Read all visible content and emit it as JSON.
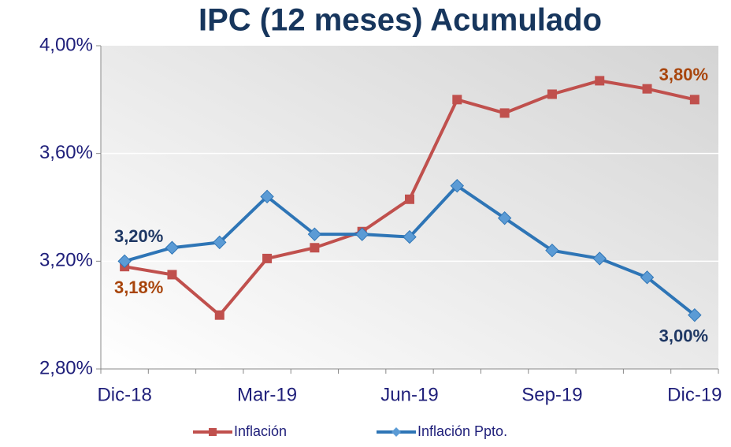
{
  "chart_data": {
    "type": "line",
    "title": "IPC (12 meses) Acumulado",
    "categories": [
      "Dic-18",
      null,
      null,
      "Mar-19",
      null,
      null,
      "Jun-19",
      null,
      null,
      "Sep-19",
      null,
      null,
      "Dic-19"
    ],
    "series": [
      {
        "name": "Inflación",
        "color": "#c0504d",
        "values": [
          3.18,
          3.15,
          3.0,
          3.21,
          3.25,
          3.31,
          3.43,
          3.8,
          3.75,
          3.82,
          3.87,
          3.84,
          3.8
        ],
        "value_labels": [
          "3,18%",
          null,
          null,
          null,
          null,
          null,
          null,
          null,
          null,
          null,
          null,
          null,
          "3,80%"
        ]
      },
      {
        "name": "Inflación Ppto.",
        "color": "#2e75b6",
        "values": [
          3.2,
          3.25,
          3.27,
          3.44,
          3.3,
          3.3,
          3.29,
          3.48,
          3.36,
          3.24,
          3.21,
          3.14,
          3.0
        ],
        "value_labels": [
          "3,20%",
          null,
          null,
          null,
          null,
          null,
          null,
          null,
          null,
          null,
          null,
          null,
          "3,00%"
        ]
      }
    ],
    "ylim": [
      2.8,
      4.0
    ],
    "yticks": [
      {
        "value": 2.8,
        "label": "2,80%"
      },
      {
        "value": 3.2,
        "label": "3,20%"
      },
      {
        "value": 3.6,
        "label": "3,60%"
      },
      {
        "value": 4.0,
        "label": "4,00%"
      }
    ],
    "grid": true
  }
}
